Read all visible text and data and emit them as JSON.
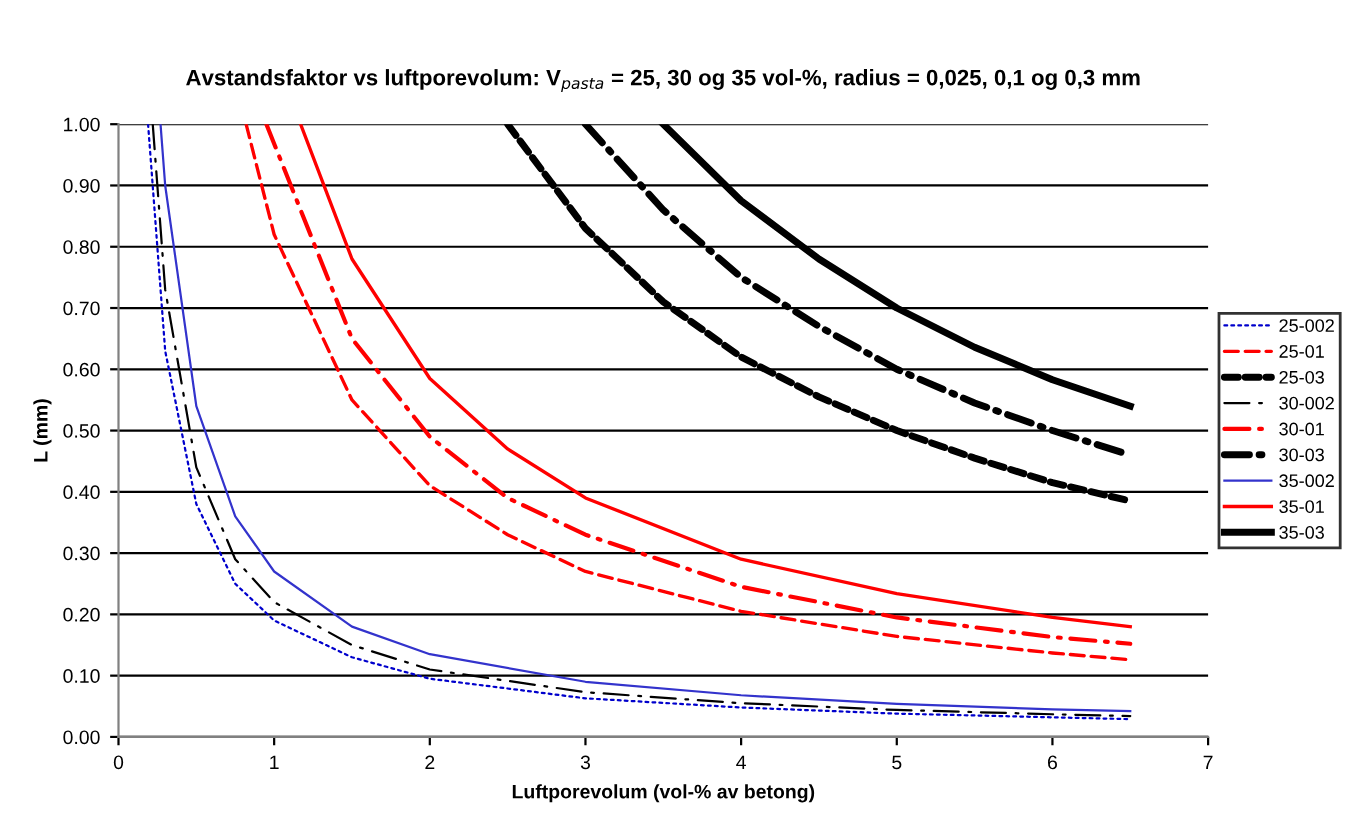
{
  "chart_data": {
    "type": "line",
    "title": "Avstandsfaktor vs luftporevolum: V$_{pasta}$ = 25, 30 og 35 vol-%, radius = 0,025, 0,1 og 0,3 mm",
    "xlabel": "Luftporevolum (vol-% av betong)",
    "ylabel": "L (mm)",
    "xlim": [
      0,
      7
    ],
    "ylim": [
      0,
      1
    ],
    "xticks": [
      0,
      1,
      2,
      3,
      4,
      5,
      6,
      7
    ],
    "yticks": [
      {
        "value": 0,
        "label": "0.00"
      },
      {
        "value": 0.1,
        "label": "0.10"
      },
      {
        "value": 0.2,
        "label": "0.20"
      },
      {
        "value": 0.3,
        "label": "0.30"
      },
      {
        "value": 0.4,
        "label": "0.40"
      },
      {
        "value": 0.5,
        "label": "0.50"
      },
      {
        "value": 0.6,
        "label": "0.60"
      },
      {
        "value": 0.7,
        "label": "0.70"
      },
      {
        "value": 0.8,
        "label": "0.80"
      },
      {
        "value": 0.9,
        "label": "0.90"
      },
      {
        "value": 1,
        "label": "1.00"
      }
    ],
    "grid": "y",
    "legend": "right",
    "marker": "none",
    "series": [
      {
        "name": "25-002",
        "color": "#0000cc",
        "line_style": "dotted",
        "x": [
          0.19,
          0.3,
          0.5,
          0.75,
          1,
          1.5,
          2,
          3,
          4,
          5,
          6,
          6.5
        ],
        "values": [
          1.0,
          0.63,
          0.38,
          0.25,
          0.19,
          0.13,
          0.095,
          0.063,
          0.048,
          0.038,
          0.032,
          0.029
        ]
      },
      {
        "name": "25-01",
        "color": "#ff0000",
        "line_style": "dashed",
        "x": [
          0.82,
          1,
          1.5,
          2,
          2.5,
          3,
          4,
          5,
          6,
          6.5
        ],
        "values": [
          1.0,
          0.82,
          0.55,
          0.41,
          0.33,
          0.27,
          0.205,
          0.164,
          0.137,
          0.126
        ]
      },
      {
        "name": "25-03",
        "color": "#000000",
        "line_style": "dashed",
        "x": [
          2.5,
          3,
          3.5,
          4,
          4.5,
          5,
          5.5,
          6,
          6.5
        ],
        "values": [
          1.0,
          0.83,
          0.71,
          0.62,
          0.555,
          0.5,
          0.455,
          0.415,
          0.385
        ]
      },
      {
        "name": "30-002",
        "color": "#000000",
        "line_style": "dashdot",
        "x": [
          0.22,
          0.3,
          0.5,
          0.75,
          1,
          1.5,
          2,
          3,
          4,
          5,
          6,
          6.5
        ],
        "values": [
          1.0,
          0.73,
          0.44,
          0.29,
          0.22,
          0.15,
          0.11,
          0.073,
          0.055,
          0.044,
          0.037,
          0.034
        ]
      },
      {
        "name": "30-01",
        "color": "#ff0000",
        "line_style": "dashdot",
        "x": [
          0.95,
          1.5,
          2,
          2.5,
          3,
          4,
          5,
          6,
          6.5
        ],
        "values": [
          1.0,
          0.65,
          0.49,
          0.39,
          0.33,
          0.245,
          0.195,
          0.163,
          0.152
        ]
      },
      {
        "name": "30-03",
        "color": "#000000",
        "line_style": "dashdot",
        "x": [
          3,
          3.5,
          4,
          4.5,
          5,
          5.5,
          6,
          6.5
        ],
        "values": [
          1.0,
          0.86,
          0.75,
          0.67,
          0.6,
          0.545,
          0.5,
          0.46
        ]
      },
      {
        "name": "35-002",
        "color": "#3333cc",
        "line_style": "solid",
        "x": [
          0.27,
          0.3,
          0.5,
          0.75,
          1,
          1.5,
          2,
          3,
          4,
          5,
          6,
          6.5
        ],
        "values": [
          1.0,
          0.9,
          0.54,
          0.36,
          0.27,
          0.18,
          0.135,
          0.09,
          0.068,
          0.054,
          0.045,
          0.042
        ]
      },
      {
        "name": "35-01",
        "color": "#ff0000",
        "line_style": "solid",
        "x": [
          1.17,
          1.5,
          2,
          2.5,
          3,
          4,
          5,
          6,
          6.5
        ],
        "values": [
          1.0,
          0.78,
          0.585,
          0.47,
          0.39,
          0.29,
          0.234,
          0.195,
          0.18
        ]
      },
      {
        "name": "35-03",
        "color": "#000000",
        "line_style": "solid",
        "x": [
          3.5,
          4,
          4.5,
          5,
          5.5,
          6,
          6.5
        ],
        "values": [
          1.0,
          0.875,
          0.78,
          0.7,
          0.636,
          0.583,
          0.54
        ]
      }
    ]
  }
}
